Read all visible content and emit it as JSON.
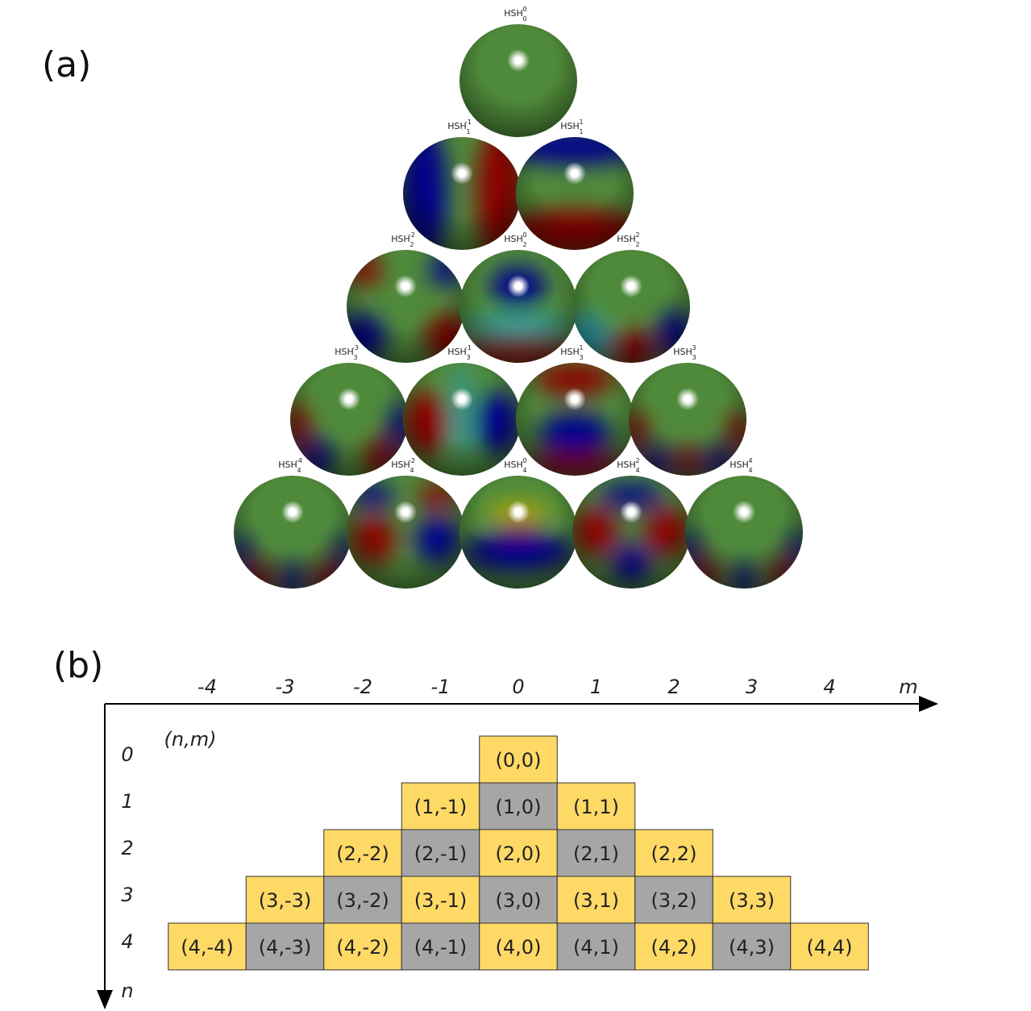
{
  "panel_a": {
    "label": "(a)",
    "base": "HSH",
    "spheres": [
      {
        "sub": "0",
        "sup": "0"
      },
      {
        "sub": "1",
        "sup": "-1"
      },
      {
        "sub": "1",
        "sup": "1"
      },
      {
        "sub": "2",
        "sup": "-2"
      },
      {
        "sub": "2",
        "sup": "0"
      },
      {
        "sub": "2",
        "sup": "2"
      },
      {
        "sub": "3",
        "sup": "-3"
      },
      {
        "sub": "3",
        "sup": "-1"
      },
      {
        "sub": "3",
        "sup": "1"
      },
      {
        "sub": "3",
        "sup": "3"
      },
      {
        "sub": "4",
        "sup": "-4"
      },
      {
        "sub": "4",
        "sup": "-2"
      },
      {
        "sub": "4",
        "sup": "0"
      },
      {
        "sub": "4",
        "sup": "2"
      },
      {
        "sub": "4",
        "sup": "4"
      }
    ]
  },
  "panel_b": {
    "label": "(b)",
    "m_axis": "m",
    "n_axis": "n",
    "corner": "(n,m)",
    "m_ticks": [
      "-4",
      "-3",
      "-2",
      "-1",
      "0",
      "1",
      "2",
      "3",
      "4"
    ],
    "n_ticks": [
      "0",
      "1",
      "2",
      "3",
      "4"
    ],
    "colors": {
      "even": "#ffd966",
      "odd": "#a6a6a6"
    },
    "rows": [
      [
        "(0,0)"
      ],
      [
        "(1,-1)",
        "(1,0)",
        "(1,1)"
      ],
      [
        "(2,-2)",
        "(2,-1)",
        "(2,0)",
        "(2,1)",
        "(2,2)"
      ],
      [
        "(3,-3)",
        "(3,-2)",
        "(3,-1)",
        "(3,0)",
        "(3,1)",
        "(3,2)",
        "(3,3)"
      ],
      [
        "(4,-4)",
        "(4,-3)",
        "(4,-2)",
        "(4,-1)",
        "(4,0)",
        "(4,1)",
        "(4,2)",
        "(4,3)",
        "(4,4)"
      ]
    ]
  }
}
